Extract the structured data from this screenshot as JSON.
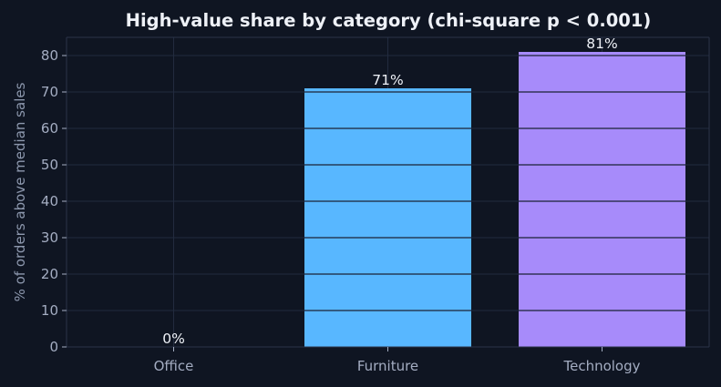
{
  "chart_data": {
    "type": "bar",
    "title": "High-value share by category  (chi-square p < 0.001)",
    "xlabel": "",
    "ylabel": "% of orders above median sales",
    "categories": [
      "Office",
      "Furniture",
      "Technology"
    ],
    "values": [
      0,
      71,
      81
    ],
    "value_labels": [
      "0%",
      "71%",
      "81%"
    ],
    "bar_colors": [
      "#58b7ff",
      "#58b7ff",
      "#a78bfa"
    ],
    "ylim": [
      0,
      85
    ],
    "yticks": [
      0,
      10,
      20,
      30,
      40,
      50,
      60,
      70,
      80
    ],
    "grid": true,
    "background": "#0f1522",
    "grid_color": "#222b3f"
  }
}
